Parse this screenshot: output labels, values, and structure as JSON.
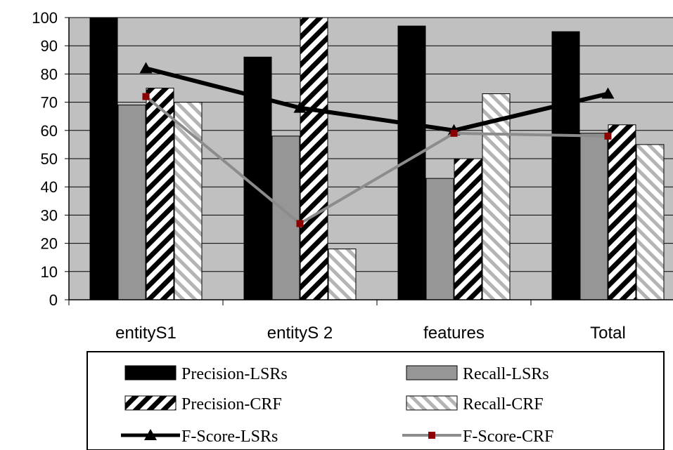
{
  "chart_data": {
    "type": "bar",
    "categories": [
      "entityS1",
      "entityS 2",
      "features",
      "Total"
    ],
    "y_ticks": [
      "0",
      "10",
      "20",
      "30",
      "40",
      "50",
      "60",
      "70",
      "80",
      "90",
      "100"
    ],
    "ylim": [
      0,
      100
    ],
    "grid": true,
    "legend_position": "bottom",
    "bar_series": [
      {
        "name": "Precision-LSRs",
        "values": [
          100,
          86,
          97,
          95
        ],
        "color": "#000000",
        "pattern": "solid"
      },
      {
        "name": "Recall-LSRs",
        "values": [
          69,
          58,
          43,
          59
        ],
        "color": "#969696",
        "pattern": "solid"
      },
      {
        "name": "Precision-CRF",
        "values": [
          75,
          100,
          50,
          62
        ],
        "color": "#000000",
        "pattern": "dense-diagonal"
      },
      {
        "name": "Recall-CRF",
        "values": [
          70,
          18,
          73,
          55
        ],
        "color": "#b4b4b4",
        "pattern": "light-diagonal"
      }
    ],
    "line_series": [
      {
        "name": "F-Score-LSRs",
        "values": [
          82,
          68,
          60,
          73
        ],
        "color": "#000000",
        "marker": "triangle"
      },
      {
        "name": "F-Score-CRF",
        "values": [
          72,
          27,
          59,
          58
        ],
        "color": "#8c8c8c",
        "marker": "square",
        "marker_color": "#8b0000"
      }
    ]
  }
}
